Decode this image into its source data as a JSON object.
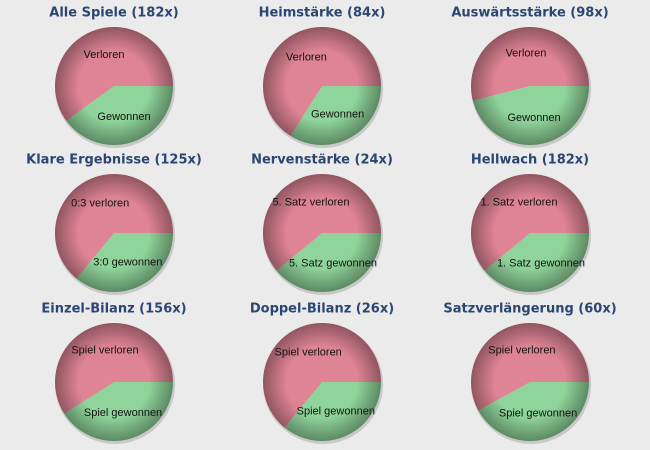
{
  "chart_data": [
    {
      "type": "pie",
      "title": "Alle Spiele (182x)",
      "categories": [
        "Gewonnen",
        "Verloren"
      ],
      "values": [
        40,
        60
      ],
      "colors": [
        "#8fd49a",
        "#df8494"
      ]
    },
    {
      "type": "pie",
      "title": "Heimstärke (84x)",
      "categories": [
        "Gewonnen",
        "Verloren"
      ],
      "values": [
        34,
        66
      ],
      "colors": [
        "#8fd49a",
        "#df8494"
      ]
    },
    {
      "type": "pie",
      "title": "Auswärtsstärke (98x)",
      "categories": [
        "Gewonnen",
        "Verloren"
      ],
      "values": [
        46,
        54
      ],
      "colors": [
        "#8fd49a",
        "#df8494"
      ]
    },
    {
      "type": "pie",
      "title": "Klare Ergebnisse (125x)",
      "categories": [
        "3:0 gewonnen",
        "0:3 verloren"
      ],
      "values": [
        36,
        64
      ],
      "colors": [
        "#8fd49a",
        "#df8494"
      ]
    },
    {
      "type": "pie",
      "title": "Nervenstärke (24x)",
      "categories": [
        "5. Satz gewonnen",
        "5. Satz verloren"
      ],
      "values": [
        39,
        61
      ],
      "colors": [
        "#8fd49a",
        "#df8494"
      ]
    },
    {
      "type": "pie",
      "title": "Hellwach (182x)",
      "categories": [
        "1. Satz gewonnen",
        "1. Satz verloren"
      ],
      "values": [
        39,
        61
      ],
      "colors": [
        "#8fd49a",
        "#df8494"
      ]
    },
    {
      "type": "pie",
      "title": "Einzel-Bilanz (156x)",
      "categories": [
        "Spiel gewonnen",
        "Spiel verloren"
      ],
      "values": [
        41,
        59
      ],
      "colors": [
        "#8fd49a",
        "#df8494"
      ]
    },
    {
      "type": "pie",
      "title": "Doppel-Bilanz (26x)",
      "categories": [
        "Spiel gewonnen",
        "Spiel verloren"
      ],
      "values": [
        36,
        64
      ],
      "colors": [
        "#8fd49a",
        "#df8494"
      ]
    },
    {
      "type": "pie",
      "title": "Satzverlängerung (60x)",
      "categories": [
        "Spiel gewonnen",
        "Spiel verloren"
      ],
      "values": [
        42,
        58
      ],
      "colors": [
        "#8fd49a",
        "#df8494"
      ]
    }
  ]
}
